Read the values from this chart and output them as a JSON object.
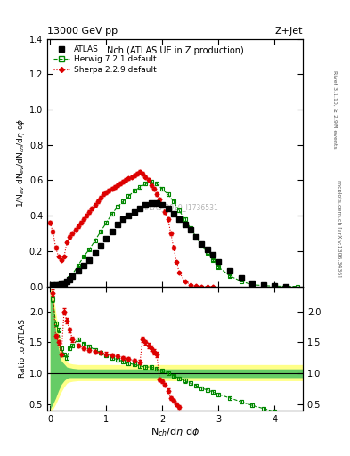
{
  "title_top": "13000 GeV pp",
  "title_right": "Z+Jet",
  "plot_title": "Nch (ATLAS UE in Z production)",
  "ylabel_main": "1/N$_{ev}$ dN$_{ev}$/dN$_{ch}$/d$\\eta$ d$\\phi$",
  "ylabel_ratio": "Ratio to ATLAS",
  "xlabel": "N$_{ch}$/d$\\eta$ d$\\phi$",
  "right_label_top": "Rivet 3.1.10, ≥ 2.9M events",
  "right_label_bottom": "mcplots.cern.ch [arXiv:1306.3436]",
  "watermark": "ATLAS_2019_I1736531",
  "atlas_x": [
    0.05,
    0.1,
    0.15,
    0.2,
    0.25,
    0.3,
    0.35,
    0.4,
    0.5,
    0.6,
    0.7,
    0.8,
    0.9,
    1.0,
    1.1,
    1.2,
    1.3,
    1.4,
    1.5,
    1.6,
    1.7,
    1.8,
    1.9,
    2.0,
    2.1,
    2.2,
    2.3,
    2.4,
    2.5,
    2.6,
    2.7,
    2.8,
    2.9,
    3.0,
    3.2,
    3.4,
    3.6,
    3.8,
    4.0,
    4.2
  ],
  "atlas_y": [
    0.01,
    0.01,
    0.01,
    0.02,
    0.02,
    0.03,
    0.04,
    0.06,
    0.09,
    0.12,
    0.15,
    0.19,
    0.23,
    0.27,
    0.31,
    0.35,
    0.38,
    0.4,
    0.42,
    0.44,
    0.46,
    0.47,
    0.47,
    0.46,
    0.44,
    0.41,
    0.38,
    0.35,
    0.32,
    0.28,
    0.24,
    0.21,
    0.18,
    0.14,
    0.09,
    0.05,
    0.02,
    0.01,
    0.005,
    0.001
  ],
  "atlas_yerr": [
    0.001,
    0.001,
    0.001,
    0.002,
    0.002,
    0.002,
    0.003,
    0.004,
    0.005,
    0.006,
    0.007,
    0.008,
    0.009,
    0.01,
    0.01,
    0.01,
    0.01,
    0.01,
    0.01,
    0.01,
    0.01,
    0.01,
    0.01,
    0.01,
    0.01,
    0.01,
    0.01,
    0.01,
    0.01,
    0.01,
    0.009,
    0.008,
    0.007,
    0.006,
    0.005,
    0.004,
    0.003,
    0.002,
    0.001,
    0.0005
  ],
  "herwig_x": [
    0.05,
    0.1,
    0.15,
    0.2,
    0.25,
    0.3,
    0.35,
    0.4,
    0.5,
    0.6,
    0.7,
    0.8,
    0.9,
    1.0,
    1.1,
    1.2,
    1.3,
    1.4,
    1.5,
    1.6,
    1.7,
    1.8,
    1.9,
    2.0,
    2.1,
    2.2,
    2.3,
    2.4,
    2.5,
    2.6,
    2.7,
    2.8,
    2.9,
    3.0,
    3.2,
    3.4,
    3.6,
    3.8,
    4.0,
    4.2,
    4.4
  ],
  "herwig_y": [
    0.01,
    0.01,
    0.015,
    0.02,
    0.025,
    0.03,
    0.05,
    0.07,
    0.12,
    0.17,
    0.21,
    0.26,
    0.31,
    0.36,
    0.41,
    0.45,
    0.48,
    0.51,
    0.54,
    0.56,
    0.58,
    0.59,
    0.58,
    0.55,
    0.52,
    0.48,
    0.43,
    0.38,
    0.33,
    0.28,
    0.23,
    0.19,
    0.15,
    0.11,
    0.06,
    0.03,
    0.01,
    0.005,
    0.002,
    0.001,
    0.0005
  ],
  "herwig_yerr": [
    0.001,
    0.001,
    0.001,
    0.001,
    0.002,
    0.002,
    0.003,
    0.004,
    0.005,
    0.006,
    0.007,
    0.008,
    0.009,
    0.01,
    0.01,
    0.01,
    0.01,
    0.01,
    0.01,
    0.01,
    0.01,
    0.01,
    0.01,
    0.01,
    0.01,
    0.01,
    0.01,
    0.01,
    0.01,
    0.009,
    0.008,
    0.007,
    0.006,
    0.005,
    0.004,
    0.003,
    0.002,
    0.001,
    0.0005,
    0.0002,
    0.0001
  ],
  "sherpa_x": [
    0.0,
    0.05,
    0.1,
    0.15,
    0.2,
    0.25,
    0.3,
    0.35,
    0.4,
    0.45,
    0.5,
    0.55,
    0.6,
    0.65,
    0.7,
    0.75,
    0.8,
    0.85,
    0.9,
    0.95,
    1.0,
    1.05,
    1.1,
    1.15,
    1.2,
    1.25,
    1.3,
    1.35,
    1.4,
    1.45,
    1.5,
    1.55,
    1.6,
    1.65,
    1.7,
    1.75,
    1.8,
    1.85,
    1.9,
    1.95,
    2.0,
    2.05,
    2.1,
    2.15,
    2.2,
    2.25,
    2.3,
    2.4,
    2.5,
    2.6,
    2.7,
    2.8,
    2.9
  ],
  "sherpa_y": [
    0.36,
    0.31,
    0.22,
    0.17,
    0.15,
    0.17,
    0.25,
    0.28,
    0.3,
    0.32,
    0.34,
    0.36,
    0.38,
    0.4,
    0.42,
    0.44,
    0.46,
    0.48,
    0.5,
    0.52,
    0.53,
    0.54,
    0.55,
    0.56,
    0.57,
    0.58,
    0.59,
    0.6,
    0.61,
    0.62,
    0.63,
    0.64,
    0.65,
    0.64,
    0.62,
    0.6,
    0.57,
    0.55,
    0.52,
    0.49,
    0.46,
    0.42,
    0.38,
    0.3,
    0.22,
    0.14,
    0.08,
    0.03,
    0.01,
    0.003,
    0.001,
    0.0005,
    0.0002
  ],
  "sherpa_yerr": [
    0.01,
    0.01,
    0.008,
    0.006,
    0.005,
    0.006,
    0.007,
    0.008,
    0.009,
    0.009,
    0.01,
    0.01,
    0.01,
    0.01,
    0.01,
    0.01,
    0.01,
    0.01,
    0.01,
    0.01,
    0.01,
    0.01,
    0.01,
    0.01,
    0.01,
    0.01,
    0.01,
    0.01,
    0.01,
    0.01,
    0.01,
    0.01,
    0.01,
    0.01,
    0.01,
    0.01,
    0.01,
    0.01,
    0.01,
    0.01,
    0.01,
    0.01,
    0.01,
    0.01,
    0.008,
    0.006,
    0.004,
    0.002,
    0.001,
    0.0005,
    0.0002,
    0.0001,
    5e-05
  ],
  "herwig_ratio_x": [
    0.05,
    0.1,
    0.15,
    0.2,
    0.25,
    0.3,
    0.35,
    0.4,
    0.5,
    0.6,
    0.7,
    0.8,
    0.9,
    1.0,
    1.1,
    1.2,
    1.3,
    1.4,
    1.5,
    1.6,
    1.7,
    1.8,
    1.9,
    2.0,
    2.1,
    2.2,
    2.3,
    2.4,
    2.5,
    2.6,
    2.7,
    2.8,
    2.9,
    3.0,
    3.2,
    3.4,
    3.6,
    3.8,
    4.0,
    4.2,
    4.4
  ],
  "herwig_ratio_y": [
    2.2,
    1.8,
    1.7,
    1.4,
    1.3,
    1.25,
    1.4,
    1.45,
    1.55,
    1.48,
    1.43,
    1.38,
    1.33,
    1.29,
    1.25,
    1.22,
    1.19,
    1.16,
    1.14,
    1.12,
    1.1,
    1.1,
    1.07,
    1.04,
    1.0,
    0.96,
    0.92,
    0.88,
    0.84,
    0.8,
    0.76,
    0.73,
    0.7,
    0.66,
    0.6,
    0.54,
    0.48,
    0.43,
    0.38,
    0.33,
    0.28
  ],
  "herwig_ratio_yerr": [
    0.05,
    0.04,
    0.04,
    0.03,
    0.03,
    0.03,
    0.03,
    0.03,
    0.03,
    0.03,
    0.03,
    0.03,
    0.03,
    0.03,
    0.03,
    0.03,
    0.03,
    0.03,
    0.03,
    0.03,
    0.03,
    0.03,
    0.03,
    0.03,
    0.03,
    0.03,
    0.03,
    0.03,
    0.03,
    0.03,
    0.03,
    0.03,
    0.03,
    0.03,
    0.03,
    0.03,
    0.03,
    0.03,
    0.03,
    0.03,
    0.03
  ],
  "sherpa_ratio_x": [
    0.05,
    0.1,
    0.15,
    0.2,
    0.25,
    0.3,
    0.35,
    0.4,
    0.5,
    0.6,
    0.7,
    0.8,
    0.9,
    1.0,
    1.1,
    1.2,
    1.3,
    1.4,
    1.5,
    1.6,
    1.65,
    1.7,
    1.75,
    1.8,
    1.85,
    1.9,
    1.95,
    2.0,
    2.05,
    2.1,
    2.15,
    2.2,
    2.25,
    2.3
  ],
  "sherpa_ratio_y": [
    2.3,
    1.6,
    1.5,
    1.3,
    2.0,
    1.85,
    1.7,
    1.55,
    1.45,
    1.4,
    1.37,
    1.35,
    1.33,
    1.31,
    1.29,
    1.27,
    1.25,
    1.23,
    1.2,
    1.18,
    1.55,
    1.5,
    1.45,
    1.4,
    1.35,
    1.3,
    0.9,
    0.87,
    0.82,
    0.72,
    0.6,
    0.55,
    0.5,
    0.45
  ],
  "sherpa_ratio_yerr": [
    0.05,
    0.04,
    0.04,
    0.03,
    0.05,
    0.04,
    0.04,
    0.04,
    0.03,
    0.03,
    0.03,
    0.03,
    0.03,
    0.03,
    0.03,
    0.03,
    0.03,
    0.03,
    0.03,
    0.03,
    0.04,
    0.04,
    0.04,
    0.04,
    0.04,
    0.04,
    0.03,
    0.03,
    0.03,
    0.03,
    0.03,
    0.03,
    0.03,
    0.03
  ],
  "band_x": [
    0.0,
    0.05,
    0.1,
    0.15,
    0.2,
    0.25,
    0.3,
    0.35,
    0.4,
    0.5,
    0.6,
    0.7,
    0.8,
    0.9,
    1.0,
    1.5,
    2.0,
    2.5,
    3.0,
    3.5,
    4.0,
    4.5
  ],
  "band_inner_hi": [
    2.3,
    2.1,
    1.7,
    1.4,
    1.2,
    1.15,
    1.1,
    1.09,
    1.08,
    1.07,
    1.07,
    1.07,
    1.07,
    1.07,
    1.07,
    1.07,
    1.07,
    1.07,
    1.07,
    1.07,
    1.07,
    1.07
  ],
  "band_inner_lo": [
    0.42,
    0.5,
    0.6,
    0.72,
    0.82,
    0.88,
    0.92,
    0.93,
    0.93,
    0.93,
    0.93,
    0.93,
    0.93,
    0.93,
    0.93,
    0.93,
    0.93,
    0.93,
    0.93,
    0.93,
    0.93,
    0.93
  ],
  "band_outer_hi": [
    2.4,
    2.3,
    2.0,
    1.7,
    1.4,
    1.25,
    1.18,
    1.16,
    1.15,
    1.14,
    1.14,
    1.14,
    1.14,
    1.14,
    1.14,
    1.14,
    1.14,
    1.14,
    1.14,
    1.14,
    1.14,
    1.14
  ],
  "band_outer_lo": [
    0.4,
    0.42,
    0.5,
    0.6,
    0.7,
    0.78,
    0.84,
    0.86,
    0.87,
    0.88,
    0.88,
    0.88,
    0.88,
    0.88,
    0.88,
    0.88,
    0.88,
    0.88,
    0.88,
    0.88,
    0.88,
    0.88
  ],
  "band_inner_color": "#66cc66",
  "band_outer_color": "#ffff88",
  "atlas_color": "#000000",
  "herwig_color": "#008800",
  "sherpa_color": "#dd0000",
  "ylim_main": [
    0.0,
    1.4
  ],
  "ylim_ratio": [
    0.4,
    2.4
  ],
  "xlim": [
    -0.05,
    4.5
  ],
  "yticks_main": [
    0.0,
    0.2,
    0.4,
    0.6,
    0.8,
    1.0,
    1.2,
    1.4
  ],
  "yticks_ratio": [
    0.5,
    1.0,
    1.5,
    2.0
  ],
  "xticks": [
    0,
    1,
    2,
    3,
    4
  ]
}
